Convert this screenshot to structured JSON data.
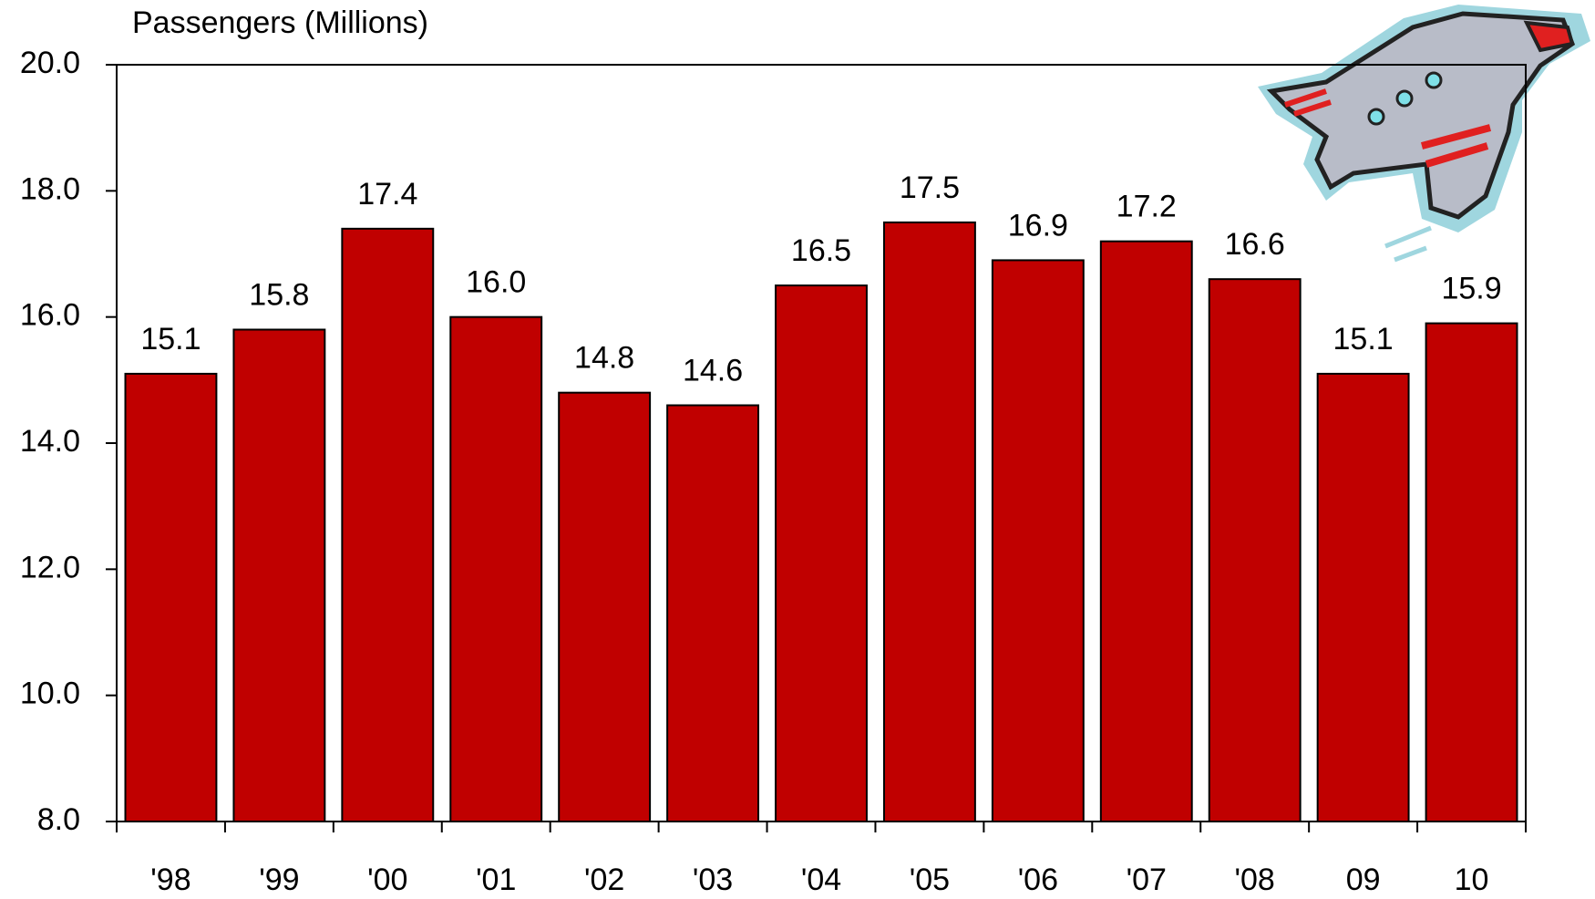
{
  "chart_data": {
    "type": "bar",
    "title": "Passengers (Millions)",
    "categories": [
      "'98",
      "'99",
      "'00",
      "'01",
      "'02",
      "'03",
      "'04",
      "'05",
      "'06",
      "'07",
      "'08",
      "09",
      "10"
    ],
    "values": [
      15.1,
      15.8,
      17.4,
      16.0,
      14.8,
      14.6,
      16.5,
      17.5,
      16.9,
      17.2,
      16.6,
      15.1,
      15.9
    ],
    "value_labels": [
      "15.1",
      "15.8",
      "17.4",
      "16.0",
      "14.8",
      "14.6",
      "16.5",
      "17.5",
      "16.9",
      "17.2",
      "16.6",
      "15.1",
      "15.9"
    ],
    "color": "#c00000",
    "ylim": [
      8,
      20
    ],
    "yticks": [
      {
        "value": 8,
        "label": "8.0"
      },
      {
        "value": 10,
        "label": "10.0"
      },
      {
        "value": 12,
        "label": "12.0"
      },
      {
        "value": 14,
        "label": "14.0"
      },
      {
        "value": 16,
        "label": "16.0"
      },
      {
        "value": 18,
        "label": "18.0"
      },
      {
        "value": 20,
        "label": "20.0"
      }
    ],
    "grid": false
  }
}
